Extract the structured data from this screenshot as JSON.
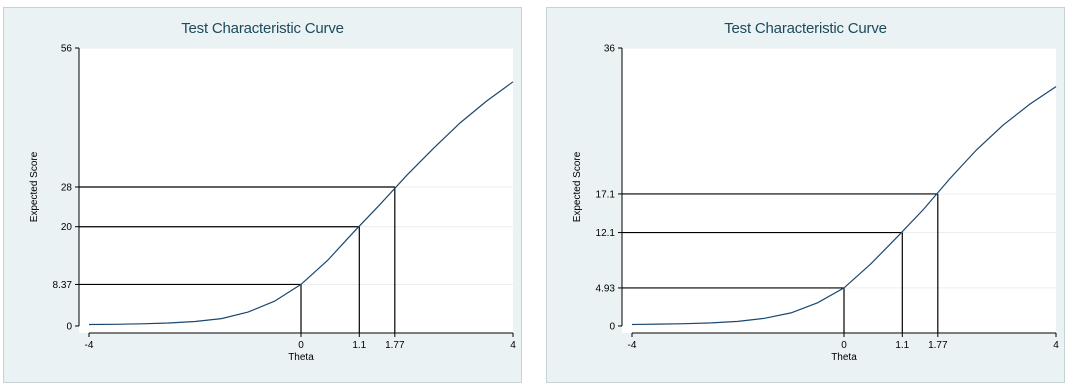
{
  "chart_data": [
    {
      "type": "line",
      "title": "Test Characteristic Curve",
      "xlabel": "Theta",
      "ylabel": "Expected Score",
      "xlim": [
        -4,
        4
      ],
      "ylim": [
        0,
        56
      ],
      "x_ticks": [
        -4,
        0,
        1.1,
        1.77,
        4
      ],
      "x_tick_labels": [
        "-4",
        "0",
        "1.1",
        "1.77",
        "4"
      ],
      "y_ticks": [
        0,
        8.37,
        20,
        28,
        56
      ],
      "y_tick_labels": [
        "0",
        "8.37",
        "20",
        "28",
        "56"
      ],
      "grid": true,
      "series": [
        {
          "x": [
            -4,
            -3.5,
            -3,
            -2.5,
            -2,
            -1.5,
            -1,
            -0.5,
            0,
            0.5,
            1,
            1.5,
            2,
            2.5,
            3,
            3.5,
            4
          ],
          "y": [
            0.3,
            0.35,
            0.45,
            0.6,
            0.9,
            1.5,
            2.8,
            5.0,
            8.37,
            13.2,
            19.0,
            24.6,
            30.4,
            35.8,
            40.9,
            45.3,
            49.2
          ]
        }
      ],
      "reference_lines": [
        {
          "x": 0,
          "y": 8.37
        },
        {
          "x": 1.1,
          "y": 20
        },
        {
          "x": 1.77,
          "y": 28
        }
      ]
    },
    {
      "type": "line",
      "title": "Test Characteristic Curve",
      "xlabel": "Theta",
      "ylabel": "Expected Score",
      "xlim": [
        -4,
        4
      ],
      "ylim": [
        0,
        36
      ],
      "x_ticks": [
        -4,
        0,
        1.1,
        1.77,
        4
      ],
      "x_tick_labels": [
        "-4",
        "0",
        "1.1",
        "1.77",
        "4"
      ],
      "y_ticks": [
        0,
        4.93,
        12.1,
        17.1,
        36
      ],
      "y_tick_labels": [
        "0",
        "4.93",
        "12.1",
        "17.1",
        "36"
      ],
      "grid": true,
      "series": [
        {
          "x": [
            -4,
            -3.5,
            -3,
            -2.5,
            -2,
            -1.5,
            -1,
            -0.5,
            0,
            0.5,
            1,
            1.5,
            2,
            2.5,
            3,
            3.5,
            4
          ],
          "y": [
            0.2,
            0.25,
            0.3,
            0.4,
            0.6,
            1.0,
            1.7,
            3.0,
            4.93,
            8.0,
            11.5,
            15.1,
            19.1,
            22.8,
            26.0,
            28.7,
            31.0
          ]
        }
      ],
      "reference_lines": [
        {
          "x": 0,
          "y": 4.93
        },
        {
          "x": 1.1,
          "y": 12.1
        },
        {
          "x": 1.77,
          "y": 17.1
        }
      ]
    }
  ]
}
